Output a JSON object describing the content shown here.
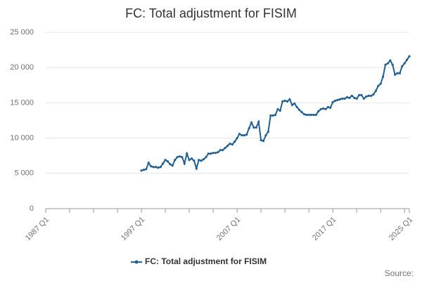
{
  "chart_data": {
    "type": "line",
    "title": "FC: Total adjustment for FISIM",
    "source": "Source:",
    "categories": [
      "1987 Q1",
      null,
      null,
      null,
      null,
      null,
      null,
      null,
      null,
      null,
      null,
      null,
      null,
      null,
      null,
      null,
      null,
      null,
      null,
      null,
      null,
      null,
      null,
      null,
      null,
      null,
      null,
      null,
      null,
      null,
      null,
      null,
      null,
      null,
      null,
      null,
      null,
      null,
      null,
      null,
      "1997 Q1",
      null,
      null,
      null,
      null,
      null,
      null,
      null,
      null,
      null,
      null,
      null,
      null,
      null,
      null,
      null,
      null,
      null,
      null,
      null,
      null,
      null,
      null,
      null,
      null,
      null,
      null,
      null,
      null,
      null,
      null,
      null,
      null,
      null,
      null,
      null,
      null,
      null,
      null,
      null,
      "2007 Q1",
      null,
      null,
      null,
      null,
      null,
      null,
      null,
      null,
      null,
      null,
      null,
      null,
      null,
      null,
      null,
      null,
      null,
      null,
      null,
      null,
      null,
      null,
      null,
      null,
      null,
      null,
      null,
      null,
      null,
      null,
      null,
      null,
      null,
      null,
      null,
      null,
      null,
      null,
      null,
      "2017 Q1",
      null,
      null,
      null,
      null,
      null,
      null,
      null,
      null,
      null,
      null,
      null,
      null,
      null,
      null,
      null,
      null,
      null,
      null,
      null,
      null,
      null,
      null,
      null,
      null,
      null,
      null,
      null,
      null,
      null,
      null,
      null,
      "2025 Q1"
    ],
    "series": [
      {
        "name": "FC: Total adjustment for FISIM",
        "color": "#206095",
        "values": [
          null,
          null,
          null,
          null,
          null,
          null,
          null,
          null,
          null,
          null,
          null,
          null,
          null,
          null,
          null,
          null,
          null,
          null,
          null,
          null,
          null,
          null,
          null,
          null,
          null,
          null,
          null,
          null,
          null,
          null,
          null,
          null,
          null,
          null,
          null,
          null,
          null,
          null,
          null,
          null,
          5400,
          5500,
          5600,
          6500,
          6000,
          5900,
          5900,
          5800,
          5900,
          6400,
          6900,
          6700,
          6300,
          6100,
          6900,
          7300,
          7400,
          7300,
          6400,
          7800,
          6900,
          7100,
          6800,
          5700,
          6900,
          6800,
          7000,
          7300,
          7800,
          7800,
          7900,
          7900,
          8000,
          8300,
          8300,
          8600,
          8900,
          9200,
          9100,
          9500,
          10000,
          10600,
          10400,
          10400,
          10500,
          11400,
          12200,
          11500,
          11500,
          12300,
          9700,
          9600,
          10400,
          10900,
          13200,
          13200,
          13300,
          14100,
          13900,
          15200,
          15300,
          15200,
          15500,
          14700,
          14900,
          14400,
          14000,
          13700,
          13400,
          13300,
          13300,
          13300,
          13300,
          13300,
          13800,
          14100,
          14200,
          14100,
          14400,
          14300,
          15100,
          15300,
          15400,
          15500,
          15600,
          15600,
          15800,
          15700,
          16000,
          15700,
          15600,
          16100,
          16100,
          15600,
          15900,
          16000,
          16000,
          16200,
          16700,
          17400,
          17700,
          18700,
          20400,
          20600,
          21000,
          20400,
          19000,
          19200,
          19200,
          20200,
          20600,
          21100,
          21600
        ]
      }
    ],
    "ylim": [
      0,
      25000
    ],
    "yticks": [
      0,
      {
        "value": 5000,
        "label": "5 000"
      },
      {
        "value": 10000,
        "label": "10 000"
      },
      {
        "value": 15000,
        "label": "15 000"
      },
      {
        "value": 20000,
        "label": "20 000"
      },
      {
        "value": 25000,
        "label": "25 000"
      }
    ],
    "grid": true
  }
}
